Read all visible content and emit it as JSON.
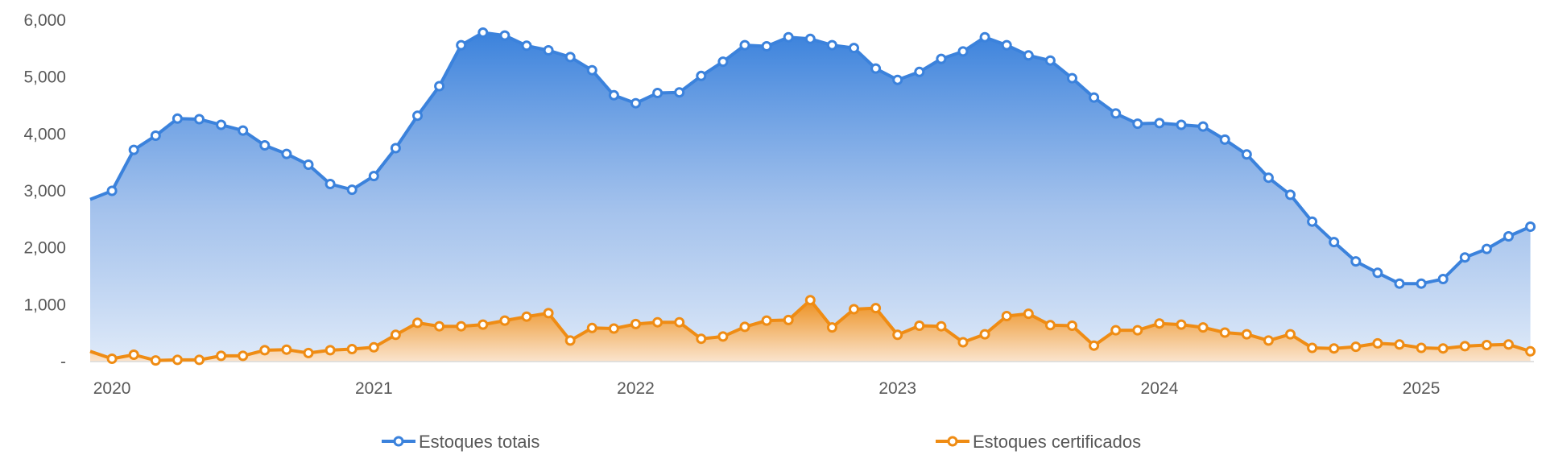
{
  "chart_data": {
    "type": "area",
    "x_start": "2019-12",
    "x_step": "month",
    "x_tick_labels": [
      "2020",
      "2021",
      "2022",
      "2023",
      "2024",
      "2025"
    ],
    "y_tick_labels": [
      "-",
      "1,000",
      "2,000",
      "3,000",
      "4,000",
      "5,000",
      "6,000"
    ],
    "ylim": [
      0,
      6000
    ],
    "grid": false,
    "legend_position": "bottom",
    "series": [
      {
        "name": "Estoques totais",
        "color": "#3b82dc",
        "values": [
          2850,
          3000,
          3720,
          3970,
          4270,
          4260,
          4160,
          4060,
          3800,
          3650,
          3460,
          3120,
          3020,
          3260,
          3750,
          4320,
          4840,
          5560,
          5780,
          5730,
          5550,
          5470,
          5350,
          5120,
          4680,
          4540,
          4720,
          4730,
          5020,
          5270,
          5560,
          5540,
          5700,
          5670,
          5560,
          5510,
          5150,
          4950,
          5090,
          5320,
          5450,
          5700,
          5560,
          5380,
          5290,
          4980,
          4640,
          4360,
          4180,
          4190,
          4160,
          4130,
          3900,
          3640,
          3230,
          2930,
          2460,
          2100,
          1760,
          1560,
          1370,
          1370,
          1450,
          1830,
          1980,
          2200,
          2370
        ]
      },
      {
        "name": "Estoques certificados",
        "color": "#ef8c14",
        "values": [
          180,
          50,
          120,
          20,
          30,
          30,
          100,
          100,
          200,
          210,
          150,
          200,
          220,
          250,
          470,
          680,
          620,
          620,
          650,
          720,
          790,
          850,
          370,
          590,
          580,
          660,
          690,
          690,
          400,
          440,
          610,
          720,
          730,
          1080,
          600,
          920,
          940,
          470,
          630,
          620,
          340,
          480,
          800,
          840,
          640,
          630,
          280,
          550,
          550,
          670,
          650,
          600,
          510,
          480,
          370,
          480,
          240,
          230,
          260,
          320,
          300,
          240,
          230,
          270,
          290,
          300,
          180
        ]
      }
    ]
  }
}
